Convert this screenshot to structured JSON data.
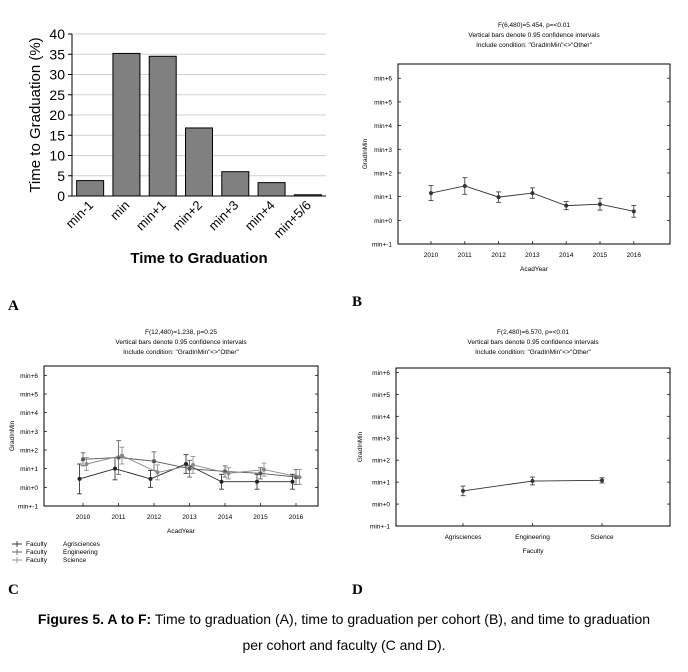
{
  "figure": {
    "panel_labels": [
      "A",
      "B",
      "C",
      "D"
    ],
    "caption_bold": "Figures 5. A to F:",
    "caption_line1": " Time to graduation (A), time to graduation per cohort (B), and time to graduation",
    "caption_line2": "per cohort and faculty (C and D)."
  },
  "chart_data": [
    {
      "id": "A",
      "type": "bar",
      "title": "",
      "xlabel": "Time to Graduation",
      "ylabel": "Time to Graduation (%)",
      "categories": [
        "min-1",
        "min",
        "min+1",
        "min+2",
        "min+3",
        "min+4",
        "min+5/6"
      ],
      "values": [
        3.8,
        35.2,
        34.5,
        16.8,
        6.0,
        3.3,
        0.3
      ],
      "ylim": [
        0,
        40
      ],
      "yticks": [
        0,
        5,
        10,
        15,
        20,
        25,
        30,
        35,
        40
      ],
      "grid": true,
      "bar_color": "#808080"
    },
    {
      "id": "B",
      "type": "line",
      "title_lines": [
        "F(6,480)=5.454, p=<0.01",
        "Vertical bars denote 0.95 confidence intervals",
        "Include condition:  \"GradInMin\"<>\"Other\""
      ],
      "xlabel": "AcadYear",
      "ylabel": "GradInMin",
      "categories": [
        "2010",
        "2011",
        "2012",
        "2013",
        "2014",
        "2015",
        "2016"
      ],
      "yticks": [
        "min+-1",
        "min+0",
        "min+1",
        "min+2",
        "min+3",
        "min+4",
        "min+5",
        "min+6"
      ],
      "ylim": [
        -1,
        6.6
      ],
      "series": [
        {
          "name": "GradInMin",
          "values": [
            1.15,
            1.45,
            0.98,
            1.15,
            0.62,
            0.68,
            0.38
          ],
          "ci": [
            0.32,
            0.35,
            0.22,
            0.22,
            0.17,
            0.25,
            0.25
          ]
        }
      ]
    },
    {
      "id": "C",
      "type": "line",
      "title_lines": [
        "F(12,480)=1.238, p=0.25",
        "Vertical bars denote 0.95 confidence intervals",
        "Include condition:  \"GradInMin\"<>\"Other\""
      ],
      "xlabel": "AcadYear",
      "ylabel": "GradInMin",
      "categories": [
        "2010",
        "2011",
        "2012",
        "2013",
        "2014",
        "2015",
        "2016"
      ],
      "yticks": [
        "min+-1",
        "min+0",
        "min+1",
        "min+2",
        "min+3",
        "min+4",
        "min+5",
        "min+6"
      ],
      "ylim": [
        -1,
        6.5
      ],
      "legend": {
        "position": "bottom-left",
        "entries": [
          {
            "label": "Faculty",
            "value": "Agrisciences"
          },
          {
            "label": "Faculty",
            "value": "Engineering"
          },
          {
            "label": "Faculty",
            "value": "Science"
          }
        ]
      },
      "series": [
        {
          "name": "Agrisciences",
          "values": [
            0.45,
            1.0,
            0.45,
            1.25,
            0.3,
            0.3,
            0.3
          ],
          "ci": [
            0.8,
            0.6,
            0.45,
            0.5,
            0.4,
            0.4,
            0.4
          ]
        },
        {
          "name": "Engineering",
          "values": [
            1.5,
            1.6,
            1.4,
            1.0,
            0.85,
            0.75,
            0.55
          ],
          "ci": [
            0.35,
            0.9,
            0.5,
            0.45,
            0.3,
            0.3,
            0.4
          ]
        },
        {
          "name": "Science",
          "values": [
            1.25,
            1.7,
            0.8,
            1.2,
            0.75,
            0.95,
            0.55
          ],
          "ci": [
            0.35,
            0.45,
            0.4,
            0.45,
            0.3,
            0.35,
            0.4
          ]
        }
      ]
    },
    {
      "id": "D",
      "type": "line",
      "title_lines": [
        "F(2,480)=6.570, p=<0.01",
        "Vertical bars denote 0.95 confidence intervals",
        "Include condition:  \"GradInMin\"<>\"Other\""
      ],
      "xlabel": "Faculty",
      "ylabel": "GradInMin",
      "categories": [
        "Agrisciences",
        "Engineering",
        "Science"
      ],
      "yticks": [
        "min+-1",
        "min+0",
        "min+1",
        "min+2",
        "min+3",
        "min+4",
        "min+5",
        "min+6"
      ],
      "ylim": [
        -1,
        6.2
      ],
      "series": [
        {
          "name": "GradInMin",
          "values": [
            0.6,
            1.05,
            1.08
          ],
          "ci": [
            0.22,
            0.18,
            0.12
          ]
        }
      ]
    }
  ]
}
